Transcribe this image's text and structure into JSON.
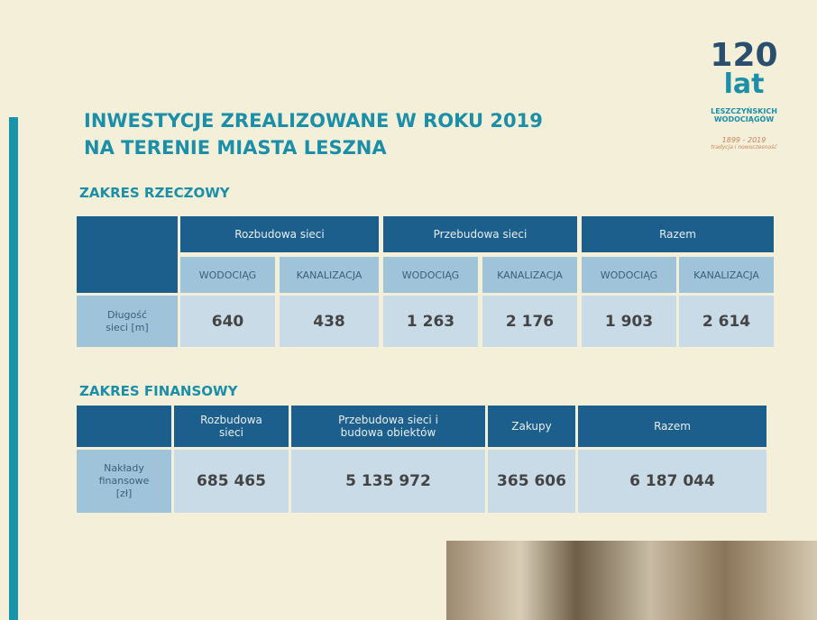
{
  "header": {
    "title_lines": [
      "INWESTYCJE ZREALIZOWANE W ROKU 2019",
      "NA TERENIE MIASTA LESZNA"
    ]
  },
  "logo": {
    "number": "120",
    "word": "lat",
    "lines": [
      "LESZCZYŃSKICH",
      "WODOCIĄGÓW"
    ],
    "years": "1899 - 2019",
    "tagline": "tradycja i nowoczesność"
  },
  "section_1": {
    "title": "ZAKRES RZECZOWY",
    "groups": [
      "Rozbudowa sieci",
      "Przebudowa sieci",
      "Razem"
    ],
    "subheaders": [
      "WODOCIĄG",
      "KANALIZACJA",
      "WODOCIĄG",
      "KANALIZACJA",
      "WODOCIĄG",
      "KANALIZACJA"
    ],
    "row_label": "Długość sieci [m]",
    "values": [
      "640",
      "438",
      "1 263",
      "2 176",
      "1 903",
      "2 614"
    ]
  },
  "section_2": {
    "title": "ZAKRES FINANSOWY",
    "headers": [
      "Rozbudowa sieci",
      "Przebudowa sieci i budowa obiektów",
      "Zakupy",
      "Razem"
    ],
    "row_label": "Nakłady finansowe [zł]",
    "values": [
      "685 465",
      "5 135 972",
      "365 606",
      "6 187 044"
    ]
  }
}
